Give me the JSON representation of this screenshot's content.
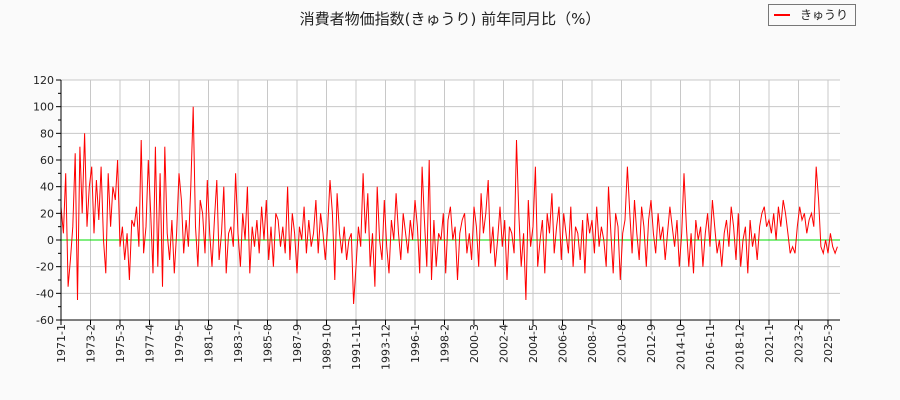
{
  "chart_data": {
    "type": "line",
    "title": "消費者物価指数(きゅうり) 前年同月比（%）",
    "xlabel": "",
    "ylabel": "",
    "ylim": [
      -60,
      120
    ],
    "yticks": [
      -60,
      -40,
      -20,
      0,
      20,
      40,
      60,
      80,
      100,
      120
    ],
    "xtick_labels": [
      "1971-1",
      "1973-2",
      "1975-3",
      "1977-4",
      "1979-5",
      "1981-6",
      "1983-7",
      "1985-8",
      "1987-9",
      "1989-10",
      "1991-11",
      "1993-12",
      "1996-1",
      "1998-2",
      "2000-3",
      "2002-4",
      "2004-5",
      "2006-6",
      "2008-7",
      "2010-8",
      "2012-9",
      "2014-10",
      "2016-11",
      "2018-12",
      "2021-1",
      "2023-2",
      "2025-3"
    ],
    "grid": true,
    "legend_placement": "top-right",
    "reference_line": {
      "y": 0,
      "color": "#00dd00"
    },
    "x_start": "1971-1",
    "x_step_months": 2,
    "series": [
      {
        "name": "きゅうり",
        "color": "#ff0000",
        "values": [
          25,
          5,
          50,
          -35,
          -15,
          10,
          65,
          -45,
          70,
          20,
          80,
          10,
          40,
          55,
          5,
          45,
          15,
          55,
          0,
          -25,
          50,
          10,
          40,
          30,
          60,
          -5,
          10,
          -15,
          5,
          -30,
          15,
          10,
          25,
          -5,
          75,
          -10,
          10,
          60,
          20,
          -25,
          70,
          -20,
          50,
          -35,
          70,
          5,
          -15,
          15,
          -25,
          5,
          50,
          30,
          -10,
          15,
          -5,
          40,
          100,
          10,
          -20,
          30,
          20,
          -10,
          45,
          5,
          -20,
          15,
          45,
          -15,
          5,
          40,
          -25,
          5,
          10,
          -5,
          50,
          5,
          -20,
          20,
          0,
          40,
          -25,
          10,
          -5,
          15,
          -10,
          25,
          0,
          30,
          -15,
          10,
          -20,
          20,
          15,
          -5,
          10,
          -10,
          40,
          -15,
          20,
          5,
          -25,
          10,
          0,
          25,
          -10,
          15,
          -5,
          5,
          30,
          -10,
          20,
          5,
          -15,
          10,
          45,
          20,
          -30,
          35,
          5,
          -10,
          10,
          -15,
          0,
          5,
          -48,
          -20,
          10,
          -5,
          50,
          5,
          35,
          -20,
          5,
          -35,
          40,
          0,
          -15,
          30,
          -5,
          -25,
          15,
          0,
          35,
          5,
          -15,
          20,
          5,
          -10,
          15,
          0,
          30,
          10,
          -25,
          55,
          15,
          -20,
          60,
          -30,
          15,
          -20,
          5,
          0,
          20,
          -25,
          15,
          25,
          0,
          10,
          -30,
          5,
          15,
          20,
          -10,
          5,
          -15,
          25,
          10,
          -20,
          35,
          5,
          20,
          45,
          -10,
          10,
          -20,
          0,
          25,
          -5,
          15,
          -30,
          10,
          5,
          -10,
          75,
          20,
          -20,
          5,
          -45,
          30,
          -5,
          10,
          55,
          -20,
          0,
          15,
          -25,
          20,
          5,
          35,
          -10,
          10,
          25,
          -15,
          20,
          5,
          -10,
          25,
          -20,
          10,
          5,
          -15,
          15,
          -25,
          20,
          5,
          15,
          -10,
          25,
          -5,
          10,
          0,
          -20,
          40,
          5,
          -25,
          20,
          10,
          -30,
          5,
          15,
          55,
          20,
          -10,
          30,
          5,
          -15,
          25,
          10,
          -20,
          15,
          30,
          5,
          -10,
          20,
          0,
          10,
          -15,
          5,
          25,
          10,
          -5,
          15,
          -20,
          5,
          50,
          10,
          -20,
          5,
          -25,
          15,
          0,
          10,
          -20,
          5,
          20,
          -5,
          30,
          10,
          -10,
          0,
          -20,
          5,
          15,
          -5,
          25,
          10,
          -15,
          20,
          -20,
          0,
          10,
          -25,
          15,
          -5,
          5,
          -15,
          10,
          20,
          25,
          10,
          15,
          5,
          20,
          0,
          25,
          10,
          30,
          20,
          5,
          -10,
          -5,
          -10,
          10,
          25,
          15,
          20,
          5,
          15,
          20,
          10,
          55,
          30,
          -5,
          -10,
          0,
          -10,
          5,
          -5,
          -10,
          -5
        ]
      }
    ]
  }
}
